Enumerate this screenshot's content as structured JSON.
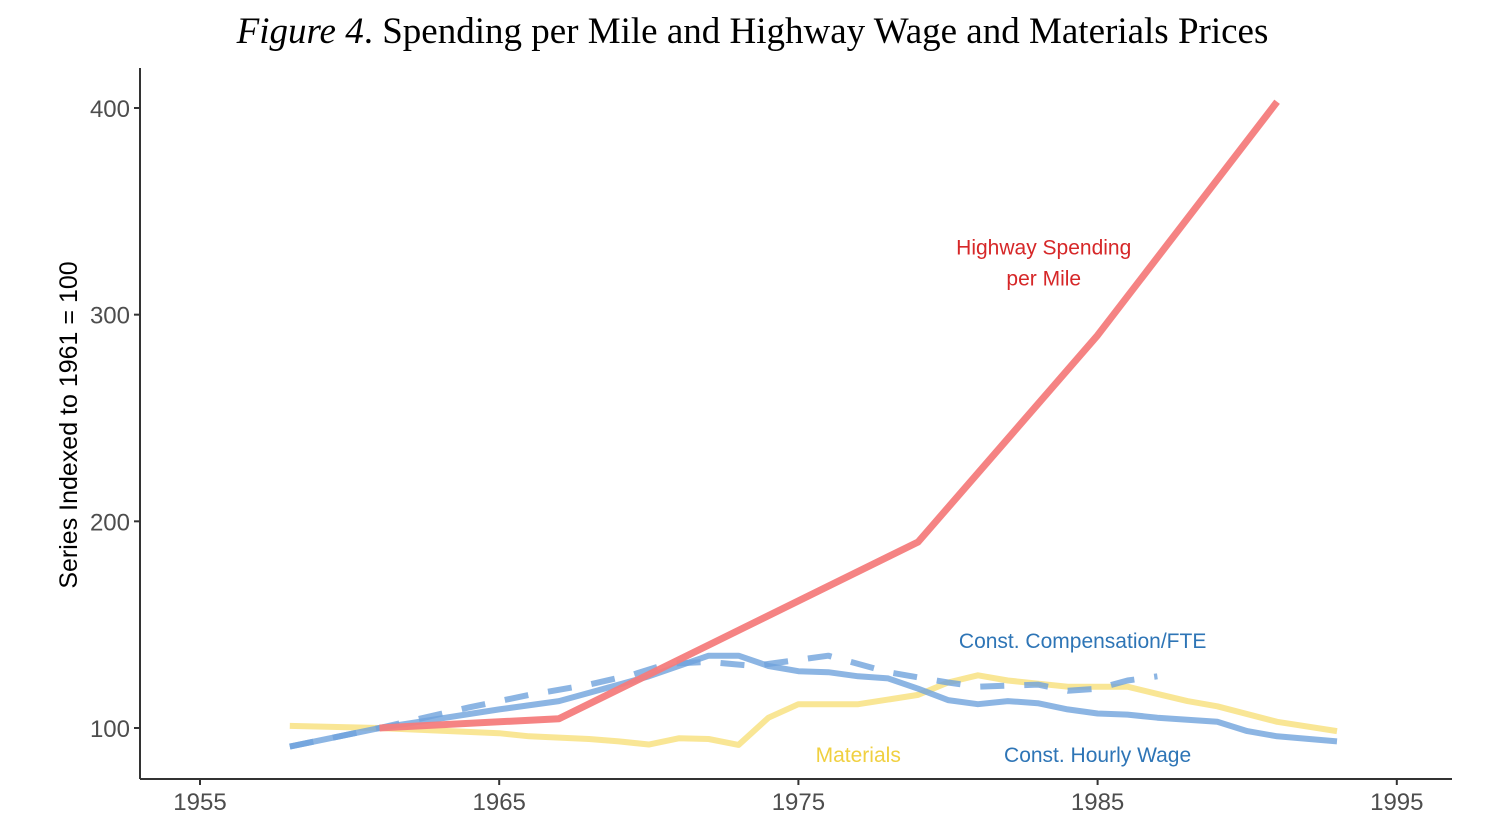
{
  "figure": {
    "title_prefix": "Figure 4",
    "title_rest": ". Spending per Mile and Highway Wage and Materials Prices"
  },
  "chart_data": {
    "type": "line",
    "title": "Figure 4. Spending per Mile and Highway Wage and Materials Prices",
    "xlabel": "",
    "ylabel": "Series Indexed to 1961 = 100",
    "xlim": [
      1953.2,
      1997
    ],
    "ylim": [
      76,
      420
    ],
    "x_ticks": [
      1955,
      1965,
      1975,
      1985,
      1995
    ],
    "y_ticks": [
      100,
      200,
      300,
      400
    ],
    "grid": false,
    "legend": "none (direct labels)",
    "series": [
      {
        "name": "Highway Spending per Mile",
        "color": "#f47c7c",
        "style": "solid",
        "x": [
          1961,
          1967,
          1979,
          1985,
          1991
        ],
        "y": [
          100,
          104.5,
          190,
          290,
          403
        ]
      },
      {
        "name": "Const. Compensation/FTE",
        "color": "#6fa3dc",
        "style": "dashed",
        "x": [
          1958,
          1961,
          1964,
          1966,
          1968,
          1969.5,
          1970.6,
          1972,
          1973.5,
          1975,
          1976,
          1978,
          1980,
          1981,
          1983,
          1984,
          1985,
          1986,
          1987
        ],
        "y": [
          91,
          100,
          110,
          116,
          121,
          126,
          131,
          132,
          130,
          133,
          135,
          127,
          122,
          120,
          121,
          118,
          119,
          123,
          125
        ]
      },
      {
        "name": "Const. Hourly Wage",
        "color": "#6fa3dc",
        "style": "solid",
        "x": [
          1958,
          1961,
          1965,
          1967,
          1970,
          1972,
          1973,
          1974,
          1975,
          1976,
          1977,
          1978,
          1979,
          1980,
          1981,
          1982,
          1983,
          1984,
          1985,
          1986,
          1987,
          1989,
          1990,
          1991,
          1993
        ],
        "y": [
          91,
          100,
          109,
          113,
          125,
          135,
          135,
          130,
          127.5,
          127,
          125,
          124,
          119,
          113.5,
          111.5,
          113,
          112,
          109,
          107,
          106.5,
          105,
          103,
          98.5,
          96,
          93.5
        ]
      },
      {
        "name": "Materials",
        "color": "#f8e07a",
        "style": "solid",
        "x": [
          1958,
          1961,
          1965,
          1966,
          1968,
          1969,
          1970,
          1971,
          1972,
          1973,
          1974,
          1975,
          1977,
          1979,
          1980,
          1981,
          1982,
          1984,
          1986,
          1987,
          1988,
          1989,
          1991,
          1993
        ],
        "y": [
          101,
          100,
          97.5,
          96,
          94.7,
          93.5,
          92,
          95,
          94.7,
          91.8,
          105,
          111.5,
          111.5,
          116,
          122,
          125.5,
          123,
          120,
          120,
          116.5,
          113,
          110.5,
          103,
          98.5
        ]
      }
    ],
    "annotations": [
      {
        "lines": [
          "Highway Spending",
          "per Mile"
        ],
        "color": "#d62728",
        "x": 1983.2,
        "y": [
          333,
          318
        ]
      },
      {
        "lines": [
          "Const. Compensation/FTE"
        ],
        "color": "#2e75b6",
        "x": 1984.5,
        "y": [
          142.5
        ]
      },
      {
        "lines": [
          "Materials"
        ],
        "color": "#f0d040",
        "x": 1977,
        "y": [
          87.5
        ]
      },
      {
        "lines": [
          "Const. Hourly Wage"
        ],
        "color": "#2e75b6",
        "x": 1985,
        "y": [
          87.5
        ]
      }
    ]
  }
}
